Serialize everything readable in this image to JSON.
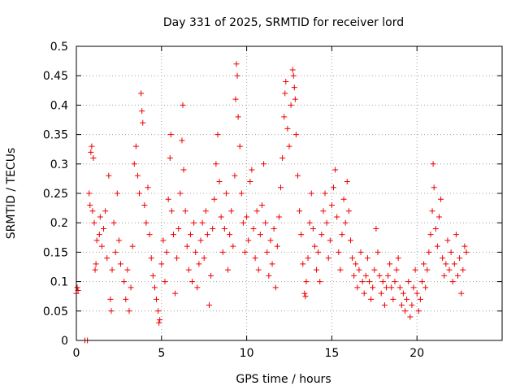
{
  "chart_data": {
    "type": "scatter",
    "title": "Day 331 of 2025, SRMTID for receiver lord",
    "xlabel": "GPS time / hours",
    "ylabel": "SRMTID / TECUs",
    "xlim": [
      0,
      25
    ],
    "ylim": [
      0,
      0.5
    ],
    "x_ticks": [
      0,
      5,
      10,
      15,
      20
    ],
    "x_tick_labels": [
      "0",
      "5",
      "10",
      "15",
      "20"
    ],
    "y_ticks": [
      0,
      0.05,
      0.1,
      0.15,
      0.2,
      0.25,
      0.3,
      0.35,
      0.4,
      0.45,
      0.5
    ],
    "y_tick_labels": [
      "0",
      "0.05",
      "0.1",
      "0.15",
      "0.2",
      "0.25",
      "0.3",
      "0.35",
      "0.4",
      "0.45",
      "0.5"
    ],
    "grid": true,
    "marker": "+",
    "color": "#ee0000",
    "series": [
      {
        "name": "SRMTID",
        "points": [
          [
            0.0,
            0.08
          ],
          [
            0.05,
            0.09
          ],
          [
            0.1,
            0.085
          ],
          [
            0.5,
            0.0
          ],
          [
            0.65,
            0.0
          ],
          [
            0.75,
            0.25
          ],
          [
            0.8,
            0.23
          ],
          [
            0.85,
            0.32
          ],
          [
            0.9,
            0.33
          ],
          [
            0.95,
            0.22
          ],
          [
            1.0,
            0.31
          ],
          [
            1.05,
            0.2
          ],
          [
            1.1,
            0.12
          ],
          [
            1.15,
            0.13
          ],
          [
            1.2,
            0.17
          ],
          [
            1.35,
            0.18
          ],
          [
            1.4,
            0.21
          ],
          [
            1.5,
            0.16
          ],
          [
            1.6,
            0.19
          ],
          [
            1.7,
            0.22
          ],
          [
            1.8,
            0.14
          ],
          [
            1.9,
            0.28
          ],
          [
            2.0,
            0.07
          ],
          [
            2.05,
            0.05
          ],
          [
            2.1,
            0.12
          ],
          [
            2.2,
            0.2
          ],
          [
            2.3,
            0.15
          ],
          [
            2.4,
            0.25
          ],
          [
            2.5,
            0.17
          ],
          [
            2.6,
            0.13
          ],
          [
            2.8,
            0.1
          ],
          [
            2.9,
            0.07
          ],
          [
            3.0,
            0.12
          ],
          [
            3.1,
            0.05
          ],
          [
            3.2,
            0.09
          ],
          [
            3.3,
            0.16
          ],
          [
            3.4,
            0.3
          ],
          [
            3.5,
            0.33
          ],
          [
            3.6,
            0.28
          ],
          [
            3.7,
            0.25
          ],
          [
            3.8,
            0.42
          ],
          [
            3.85,
            0.39
          ],
          [
            3.9,
            0.37
          ],
          [
            4.0,
            0.23
          ],
          [
            4.1,
            0.2
          ],
          [
            4.2,
            0.26
          ],
          [
            4.3,
            0.18
          ],
          [
            4.4,
            0.14
          ],
          [
            4.5,
            0.11
          ],
          [
            4.6,
            0.09
          ],
          [
            4.7,
            0.07
          ],
          [
            4.8,
            0.05
          ],
          [
            4.85,
            0.03
          ],
          [
            4.9,
            0.035
          ],
          [
            5.0,
            0.13
          ],
          [
            5.1,
            0.17
          ],
          [
            5.2,
            0.1
          ],
          [
            5.3,
            0.15
          ],
          [
            5.4,
            0.24
          ],
          [
            5.5,
            0.31
          ],
          [
            5.55,
            0.35
          ],
          [
            5.6,
            0.22
          ],
          [
            5.7,
            0.18
          ],
          [
            5.8,
            0.08
          ],
          [
            5.9,
            0.14
          ],
          [
            6.0,
            0.19
          ],
          [
            6.1,
            0.25
          ],
          [
            6.2,
            0.34
          ],
          [
            6.25,
            0.4
          ],
          [
            6.3,
            0.29
          ],
          [
            6.4,
            0.22
          ],
          [
            6.5,
            0.16
          ],
          [
            6.6,
            0.12
          ],
          [
            6.7,
            0.18
          ],
          [
            6.8,
            0.1
          ],
          [
            6.9,
            0.2
          ],
          [
            7.0,
            0.15
          ],
          [
            7.1,
            0.09
          ],
          [
            7.2,
            0.13
          ],
          [
            7.3,
            0.17
          ],
          [
            7.4,
            0.2
          ],
          [
            7.5,
            0.14
          ],
          [
            7.6,
            0.22
          ],
          [
            7.7,
            0.18
          ],
          [
            7.8,
            0.06
          ],
          [
            7.9,
            0.11
          ],
          [
            8.0,
            0.19
          ],
          [
            8.1,
            0.24
          ],
          [
            8.2,
            0.3
          ],
          [
            8.3,
            0.35
          ],
          [
            8.4,
            0.27
          ],
          [
            8.5,
            0.21
          ],
          [
            8.6,
            0.15
          ],
          [
            8.7,
            0.19
          ],
          [
            8.8,
            0.25
          ],
          [
            8.9,
            0.12
          ],
          [
            9.0,
            0.18
          ],
          [
            9.1,
            0.22
          ],
          [
            9.2,
            0.16
          ],
          [
            9.3,
            0.28
          ],
          [
            9.35,
            0.41
          ],
          [
            9.4,
            0.47
          ],
          [
            9.45,
            0.45
          ],
          [
            9.5,
            0.38
          ],
          [
            9.6,
            0.33
          ],
          [
            9.7,
            0.25
          ],
          [
            9.8,
            0.2
          ],
          [
            9.9,
            0.15
          ],
          [
            10.0,
            0.21
          ],
          [
            10.1,
            0.17
          ],
          [
            10.2,
            0.27
          ],
          [
            10.3,
            0.29
          ],
          [
            10.4,
            0.19
          ],
          [
            10.5,
            0.14
          ],
          [
            10.6,
            0.22
          ],
          [
            10.7,
            0.12
          ],
          [
            10.8,
            0.18
          ],
          [
            10.9,
            0.23
          ],
          [
            11.0,
            0.3
          ],
          [
            11.1,
            0.2
          ],
          [
            11.2,
            0.15
          ],
          [
            11.3,
            0.11
          ],
          [
            11.4,
            0.17
          ],
          [
            11.5,
            0.13
          ],
          [
            11.6,
            0.19
          ],
          [
            11.7,
            0.09
          ],
          [
            11.8,
            0.16
          ],
          [
            11.9,
            0.21
          ],
          [
            12.0,
            0.26
          ],
          [
            12.1,
            0.31
          ],
          [
            12.2,
            0.38
          ],
          [
            12.25,
            0.42
          ],
          [
            12.3,
            0.44
          ],
          [
            12.4,
            0.36
          ],
          [
            12.5,
            0.33
          ],
          [
            12.6,
            0.4
          ],
          [
            12.7,
            0.46
          ],
          [
            12.75,
            0.45
          ],
          [
            12.8,
            0.43
          ],
          [
            12.85,
            0.41
          ],
          [
            12.9,
            0.35
          ],
          [
            13.0,
            0.28
          ],
          [
            13.1,
            0.22
          ],
          [
            13.2,
            0.18
          ],
          [
            13.3,
            0.13
          ],
          [
            13.4,
            0.08
          ],
          [
            13.45,
            0.075
          ],
          [
            13.5,
            0.1
          ],
          [
            13.6,
            0.14
          ],
          [
            13.7,
            0.2
          ],
          [
            13.8,
            0.25
          ],
          [
            13.9,
            0.19
          ],
          [
            14.0,
            0.16
          ],
          [
            14.1,
            0.12
          ],
          [
            14.2,
            0.15
          ],
          [
            14.3,
            0.1
          ],
          [
            14.4,
            0.18
          ],
          [
            14.5,
            0.22
          ],
          [
            14.6,
            0.25
          ],
          [
            14.7,
            0.2
          ],
          [
            14.8,
            0.14
          ],
          [
            14.9,
            0.17
          ],
          [
            15.0,
            0.23
          ],
          [
            15.1,
            0.26
          ],
          [
            15.2,
            0.29
          ],
          [
            15.3,
            0.21
          ],
          [
            15.4,
            0.15
          ],
          [
            15.5,
            0.12
          ],
          [
            15.6,
            0.18
          ],
          [
            15.7,
            0.24
          ],
          [
            15.8,
            0.2
          ],
          [
            15.9,
            0.27
          ],
          [
            16.0,
            0.22
          ],
          [
            16.1,
            0.17
          ],
          [
            16.2,
            0.14
          ],
          [
            16.3,
            0.11
          ],
          [
            16.4,
            0.13
          ],
          [
            16.5,
            0.09
          ],
          [
            16.6,
            0.12
          ],
          [
            16.7,
            0.15
          ],
          [
            16.8,
            0.1
          ],
          [
            16.9,
            0.08
          ],
          [
            17.0,
            0.11
          ],
          [
            17.1,
            0.14
          ],
          [
            17.2,
            0.1
          ],
          [
            17.3,
            0.07
          ],
          [
            17.4,
            0.09
          ],
          [
            17.5,
            0.12
          ],
          [
            17.6,
            0.19
          ],
          [
            17.7,
            0.15
          ],
          [
            17.8,
            0.11
          ],
          [
            17.9,
            0.08
          ],
          [
            18.0,
            0.1
          ],
          [
            18.1,
            0.06
          ],
          [
            18.2,
            0.09
          ],
          [
            18.3,
            0.11
          ],
          [
            18.4,
            0.13
          ],
          [
            18.5,
            0.09
          ],
          [
            18.6,
            0.07
          ],
          [
            18.7,
            0.1
          ],
          [
            18.8,
            0.12
          ],
          [
            18.9,
            0.14
          ],
          [
            19.0,
            0.09
          ],
          [
            19.1,
            0.06
          ],
          [
            19.2,
            0.08
          ],
          [
            19.3,
            0.05
          ],
          [
            19.4,
            0.07
          ],
          [
            19.5,
            0.1
          ],
          [
            19.6,
            0.04
          ],
          [
            19.7,
            0.06
          ],
          [
            19.8,
            0.09
          ],
          [
            19.9,
            0.12
          ],
          [
            20.0,
            0.08
          ],
          [
            20.1,
            0.05
          ],
          [
            20.2,
            0.07
          ],
          [
            20.3,
            0.1
          ],
          [
            20.4,
            0.13
          ],
          [
            20.5,
            0.09
          ],
          [
            20.6,
            0.12
          ],
          [
            20.7,
            0.15
          ],
          [
            20.8,
            0.18
          ],
          [
            20.9,
            0.22
          ],
          [
            20.95,
            0.3
          ],
          [
            21.0,
            0.26
          ],
          [
            21.1,
            0.19
          ],
          [
            21.2,
            0.16
          ],
          [
            21.3,
            0.21
          ],
          [
            21.4,
            0.24
          ],
          [
            21.5,
            0.14
          ],
          [
            21.6,
            0.11
          ],
          [
            21.7,
            0.13
          ],
          [
            21.8,
            0.17
          ],
          [
            21.9,
            0.12
          ],
          [
            22.0,
            0.15
          ],
          [
            22.1,
            0.1
          ],
          [
            22.2,
            0.13
          ],
          [
            22.3,
            0.18
          ],
          [
            22.4,
            0.11
          ],
          [
            22.5,
            0.14
          ],
          [
            22.6,
            0.08
          ],
          [
            22.7,
            0.12
          ],
          [
            22.8,
            0.16
          ],
          [
            22.9,
            0.15
          ]
        ]
      }
    ]
  }
}
